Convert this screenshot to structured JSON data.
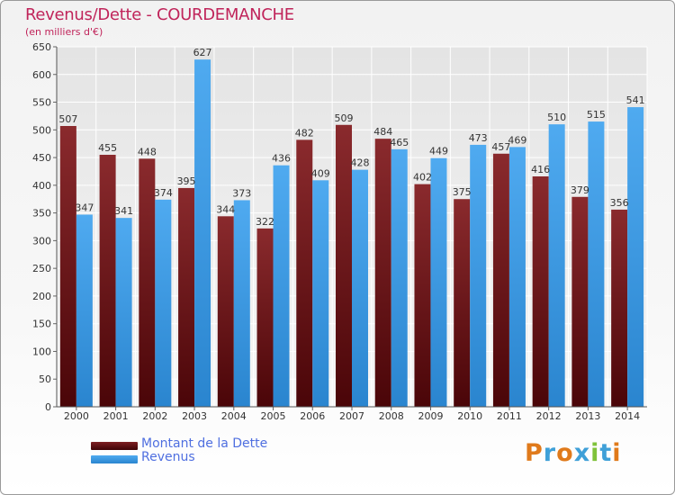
{
  "title": "Revenus/Dette - COURDEMANCHE",
  "subtitle": "(en milliers d'€)",
  "colors": {
    "dette": "#7d1f22",
    "revenus": "#3b9de6",
    "title": "#c0245a",
    "legend_text": "#4f6fe0"
  },
  "legend": [
    {
      "label": "Montant de la Dette",
      "color": "#5c0d10"
    },
    {
      "label": "Revenus",
      "color": "#3b9de6"
    }
  ],
  "logo": {
    "text": "Proxiti",
    "letters": [
      "P",
      "r",
      "o",
      "x",
      "i",
      "t",
      "i"
    ],
    "colors": [
      "#e07a1b",
      "#3fa0d8",
      "#e07a1b",
      "#3fa0d8",
      "#7fc23a",
      "#3fa0d8",
      "#e07a1b"
    ]
  },
  "chart_data": {
    "type": "bar",
    "title": "Revenus/Dette - COURDEMANCHE",
    "subtitle": "(en milliers d'€)",
    "categories": [
      "2000",
      "2001",
      "2002",
      "2003",
      "2004",
      "2005",
      "2006",
      "2007",
      "2008",
      "2009",
      "2010",
      "2011",
      "2012",
      "2013",
      "2014"
    ],
    "series": [
      {
        "name": "Montant de la Dette",
        "values": [
          507,
          455,
          448,
          395,
          344,
          322,
          482,
          509,
          484,
          402,
          375,
          457,
          416,
          379,
          356
        ]
      },
      {
        "name": "Revenus",
        "values": [
          347,
          341,
          374,
          627,
          373,
          436,
          409,
          428,
          465,
          449,
          473,
          469,
          510,
          515,
          541
        ]
      }
    ],
    "ylim": [
      0,
      650
    ],
    "yticks": [
      0,
      50,
      100,
      150,
      200,
      250,
      300,
      350,
      400,
      450,
      500,
      550,
      600,
      650
    ],
    "grid": true,
    "legend_position": "bottom-left"
  }
}
